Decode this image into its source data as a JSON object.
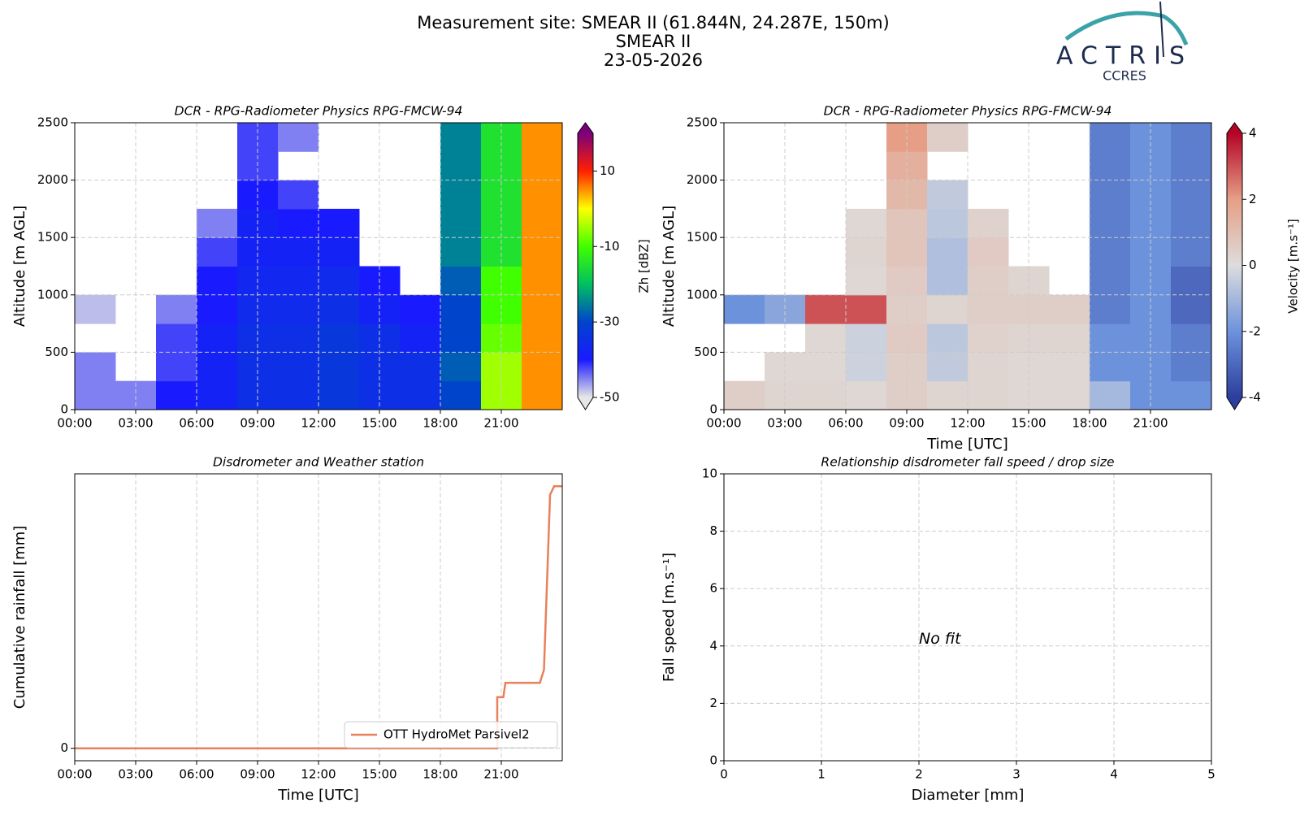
{
  "suptitle": [
    "Measurement site: SMEAR II (61.844N, 24.287E, 150m)",
    "SMEAR II",
    "23-05-2026"
  ],
  "logo": {
    "text": "ACTRIS",
    "subtext": "CCRES"
  },
  "chart_data": [
    {
      "type": "heatmap",
      "title": "DCR - RPG-Radiometer Physics RPG-FMCW-94",
      "ylabel": "Altitude [m AGL]",
      "xlim": [
        0,
        24
      ],
      "xticks": [
        {
          "value": 0,
          "label": "00:00"
        },
        {
          "value": 3,
          "label": "03:00"
        },
        {
          "value": 6,
          "label": "06:00"
        },
        {
          "value": 9,
          "label": "09:00"
        },
        {
          "value": 12,
          "label": "12:00"
        },
        {
          "value": 15,
          "label": "15:00"
        },
        {
          "value": 18,
          "label": "18:00"
        },
        {
          "value": 21,
          "label": "21:00"
        }
      ],
      "ylim": [
        0,
        2500
      ],
      "yticks": [
        0,
        500,
        1000,
        1500,
        2000,
        2500
      ],
      "grid": true,
      "x_edges": [
        0,
        2,
        4,
        6,
        8,
        10,
        12,
        14,
        16,
        18,
        20,
        22,
        24
      ],
      "y_edges": [
        0,
        250,
        500,
        750,
        1000,
        1250,
        1500,
        1750,
        2000,
        2250,
        2500
      ],
      "z": [
        [
          -45,
          -45,
          -40,
          -38,
          -35,
          -35,
          -33,
          -35,
          -35,
          -30,
          -5,
          5
        ],
        [
          -45,
          null,
          -42,
          -38,
          -35,
          -35,
          -33,
          -35,
          -35,
          -28,
          -5,
          5
        ],
        [
          null,
          null,
          -42,
          -38,
          -35,
          -35,
          -33,
          -35,
          -38,
          -30,
          -8,
          5
        ],
        [
          -48,
          null,
          -45,
          -40,
          -36,
          -36,
          -35,
          -38,
          -40,
          -30,
          -10,
          5
        ],
        [
          null,
          null,
          null,
          -40,
          -37,
          -37,
          -36,
          -40,
          null,
          -28,
          -10,
          5
        ],
        [
          null,
          null,
          null,
          -42,
          -38,
          -38,
          -38,
          null,
          null,
          -25,
          -15,
          5
        ],
        [
          null,
          null,
          null,
          -45,
          -38,
          -40,
          -40,
          null,
          null,
          -25,
          -15,
          5
        ],
        [
          null,
          null,
          null,
          null,
          -40,
          -42,
          null,
          null,
          null,
          -25,
          -15,
          5
        ],
        [
          null,
          null,
          null,
          null,
          -42,
          null,
          null,
          null,
          null,
          -25,
          -15,
          5
        ],
        [
          null,
          null,
          null,
          null,
          -42,
          -45,
          null,
          null,
          null,
          -25,
          -15,
          5
        ]
      ],
      "colorbar": {
        "label": "Zh [dBZ]",
        "lim": [
          -50,
          20
        ],
        "ticks": [
          -50,
          -30,
          -10,
          10
        ],
        "colormap": [
          "#e6e6e6",
          "#1a1aff",
          "#0044cc",
          "#00c060",
          "#40ff00",
          "#ffff00",
          "#ff2000",
          "#7a007a"
        ]
      }
    },
    {
      "type": "heatmap",
      "title": "DCR - RPG-Radiometer Physics RPG-FMCW-94",
      "xlabel": "Time [UTC]",
      "ylabel": "Altitude [m AGL]",
      "xlim": [
        0,
        24
      ],
      "xticks": [
        {
          "value": 0,
          "label": "00:00"
        },
        {
          "value": 3,
          "label": "03:00"
        },
        {
          "value": 6,
          "label": "06:00"
        },
        {
          "value": 9,
          "label": "09:00"
        },
        {
          "value": 12,
          "label": "12:00"
        },
        {
          "value": 15,
          "label": "15:00"
        },
        {
          "value": 18,
          "label": "18:00"
        },
        {
          "value": 21,
          "label": "21:00"
        }
      ],
      "ylim": [
        0,
        2500
      ],
      "yticks": [
        0,
        500,
        1000,
        1500,
        2000,
        2500
      ],
      "grid": true,
      "x_edges": [
        0,
        2,
        4,
        6,
        8,
        10,
        12,
        14,
        16,
        18,
        20,
        22,
        24
      ],
      "y_edges": [
        0,
        250,
        500,
        750,
        1000,
        1250,
        1500,
        1750,
        2000,
        2250,
        2500
      ],
      "z": [
        [
          0.5,
          0.3,
          0.3,
          0.2,
          0.5,
          0.3,
          0.3,
          0.2,
          0.2,
          -1,
          -2,
          -2
        ],
        [
          null,
          0.2,
          0.2,
          -0.3,
          0.5,
          -0.5,
          0.3,
          0.2,
          0.2,
          -2,
          -2,
          -2.5
        ],
        [
          null,
          null,
          0.2,
          -0.3,
          0.6,
          -0.6,
          0.4,
          0.3,
          0.3,
          -2,
          -2,
          -2.5
        ],
        [
          -2,
          -1.5,
          3,
          3,
          0.5,
          0.3,
          0.5,
          0.5,
          0.5,
          -2.5,
          -2,
          -3
        ],
        [
          null,
          null,
          null,
          0.2,
          0.6,
          -0.8,
          0.5,
          0.3,
          null,
          -2.5,
          -2,
          -3
        ],
        [
          null,
          null,
          null,
          0.3,
          0.8,
          -0.8,
          0.6,
          null,
          null,
          -2.5,
          -2,
          -2.5
        ],
        [
          null,
          null,
          null,
          0.2,
          0.8,
          -0.6,
          0.4,
          null,
          null,
          -2.5,
          -2,
          -2.5
        ],
        [
          null,
          null,
          null,
          null,
          1.2,
          -0.5,
          null,
          null,
          null,
          -2.5,
          -2,
          -2.5
        ],
        [
          null,
          null,
          null,
          null,
          1.5,
          null,
          null,
          null,
          null,
          -2.5,
          -2,
          -2.5
        ],
        [
          null,
          null,
          null,
          null,
          2,
          0.5,
          null,
          null,
          null,
          -2.5,
          -2,
          -2.5
        ]
      ],
      "colorbar": {
        "label": "Velocity [m.s⁻¹]",
        "lim": [
          -4,
          4
        ],
        "ticks": [
          -4,
          -2,
          0,
          2,
          4
        ],
        "colormap": [
          "#2c3e9e",
          "#6d92dc",
          "#dddddd",
          "#e69f86",
          "#b40426"
        ]
      }
    },
    {
      "type": "line",
      "title": "Disdrometer and Weather station",
      "xlabel": "Time [UTC]",
      "ylabel": "Cumulative rainfall [mm]",
      "xlim": [
        0,
        24
      ],
      "xticks": [
        {
          "value": 0,
          "label": "00:00"
        },
        {
          "value": 3,
          "label": "03:00"
        },
        {
          "value": 6,
          "label": "06:00"
        },
        {
          "value": 9,
          "label": "09:00"
        },
        {
          "value": 12,
          "label": "12:00"
        },
        {
          "value": 15,
          "label": "15:00"
        },
        {
          "value": 18,
          "label": "18:00"
        },
        {
          "value": 21,
          "label": "21:00"
        }
      ],
      "ylim": [
        -0.19,
        4.19
      ],
      "yticks": [
        0
      ],
      "grid": true,
      "legend": "lower right",
      "x": [
        0,
        20.8,
        20.8,
        21.1,
        21.2,
        22.9,
        23.0,
        23.1,
        23.4,
        23.6,
        24
      ],
      "series": [
        {
          "name": "OTT HydroMet Parsivel2",
          "color": "#e8805a",
          "values": [
            0,
            0,
            0.78,
            0.78,
            1.0,
            1.0,
            1.1,
            1.2,
            3.87,
            4.0,
            4.0
          ]
        }
      ]
    },
    {
      "type": "scatter",
      "title": "Relationship disdrometer fall speed / drop size",
      "xlabel": "Diameter [mm]",
      "ylabel": "Fall speed [m.s⁻¹]",
      "xlim": [
        0,
        5
      ],
      "xticks": [
        0,
        1,
        2,
        3,
        4,
        5
      ],
      "ylim": [
        0,
        10
      ],
      "yticks": [
        0,
        2,
        4,
        6,
        8,
        10
      ],
      "grid": true,
      "annotation": "No fit"
    }
  ]
}
